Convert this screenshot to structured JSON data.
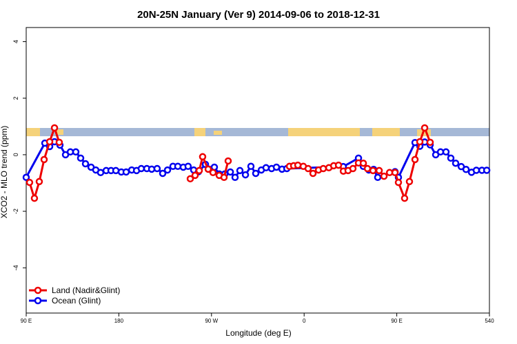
{
  "chart_data": {
    "type": "line",
    "title": "20N-25N January (Ver 9)   2014-09-06 to 2018-12-31",
    "xlabel": "Longitude (deg E)",
    "ylabel": "XCO2 - MLO trend (ppm)",
    "xlim": [
      90,
      540
    ],
    "ylim": [
      -5.6,
      4.5
    ],
    "xticks": [
      {
        "value": 90,
        "label": "90 E"
      },
      180,
      {
        "value": 270,
        "label": "90 W"
      },
      {
        "value": 360,
        "label": "0"
      },
      {
        "value": 450,
        "label": "90 E"
      },
      540
    ],
    "yticks": [
      -4,
      -2,
      0,
      2,
      4
    ],
    "legend": "bottom-left",
    "series": [
      {
        "name": "Ocean (Glint)",
        "color": "#0000ee",
        "x": [
          90,
          108.1,
          112.8,
          117.5,
          122.8,
          128.2,
          132.9,
          138.2,
          142.9,
          147.6,
          153,
          157.6,
          162.3,
          167.7,
          172.4,
          177.1,
          182.4,
          187.1,
          192.5,
          197.2,
          201.8,
          207.2,
          211.9,
          217.2,
          222.6,
          227.3,
          232.6,
          237.3,
          242.6,
          247.3,
          252.7,
          257.4,
          264.1,
          267.5,
          272.8,
          277.5,
          282.9,
          288.3,
          292.9,
          297.6,
          303,
          308.3,
          313,
          318.4,
          323,
          328.4,
          333.1,
          338.5,
          343.2,
          398,
          412.8,
          417.5,
          422.8,
          427.5,
          431.5,
          448.3,
          451.6,
          467.7,
          472.4,
          477.1,
          482.4,
          487.8,
          492.5,
          497.8,
          502.5,
          507.2,
          512.6,
          517.3,
          522.6,
          527.3,
          532.7,
          537.4
        ],
        "values": [
          -0.8,
          0.41,
          0.29,
          0.46,
          0.34,
          0,
          0.1,
          0.1,
          -0.12,
          -0.32,
          -0.44,
          -0.54,
          -0.63,
          -0.56,
          -0.56,
          -0.56,
          -0.61,
          -0.61,
          -0.54,
          -0.56,
          -0.49,
          -0.49,
          -0.51,
          -0.49,
          -0.66,
          -0.54,
          -0.41,
          -0.41,
          -0.44,
          -0.41,
          -0.54,
          -0.6,
          -0.34,
          -0.51,
          -0.44,
          -0.68,
          -0.68,
          -0.61,
          -0.8,
          -0.56,
          -0.71,
          -0.41,
          -0.66,
          -0.54,
          -0.46,
          -0.49,
          -0.44,
          -0.51,
          -0.49,
          -0.42,
          -0.12,
          -0.41,
          -0.54,
          -0.52,
          -0.8,
          -0.6,
          -0.8,
          0.43,
          0.3,
          0.45,
          0.35,
          0,
          0.1,
          0.1,
          -0.12,
          -0.3,
          -0.42,
          -0.52,
          -0.62,
          -0.55,
          -0.55,
          -0.55
        ]
      },
      {
        "name": "Land (Nadir&Glint)",
        "color": "#ee0000",
        "x": [
          93.3,
          98,
          102.7,
          107.4,
          112.8,
          117.5,
          122.1,
          null,
          249.4,
          254.1,
          258.1,
          261.4,
          266.8,
          271.5,
          277.5,
          282.2,
          286.2,
          null,
          345.8,
          349.8,
          353.9,
          359.2,
          363.9,
          368.6,
          374,
          378.6,
          384,
          388.7,
          393.4,
          398.1,
          402.7,
          407.4,
          412.8,
          417.5,
          421.5,
          426.9,
          432.9,
          437.6,
          443,
          448.3,
          451.6,
          457.6,
          462.3,
          467.7,
          472.4,
          477.1,
          482.4
        ],
        "values": [
          -0.98,
          -1.54,
          -0.95,
          -0.17,
          0.46,
          0.95,
          0.44,
          null,
          -0.85,
          -0.73,
          -0.56,
          -0.07,
          -0.51,
          -0.63,
          -0.73,
          -0.8,
          -0.22,
          null,
          -0.41,
          -0.39,
          -0.37,
          -0.41,
          -0.49,
          -0.66,
          -0.54,
          -0.49,
          -0.46,
          -0.39,
          -0.37,
          -0.58,
          -0.56,
          -0.49,
          -0.29,
          -0.3,
          -0.49,
          -0.56,
          -0.56,
          -0.76,
          -0.63,
          -0.63,
          -0.98,
          -1.54,
          -0.95,
          -0.17,
          0.46,
          0.95,
          0.44
        ]
      }
    ]
  }
}
